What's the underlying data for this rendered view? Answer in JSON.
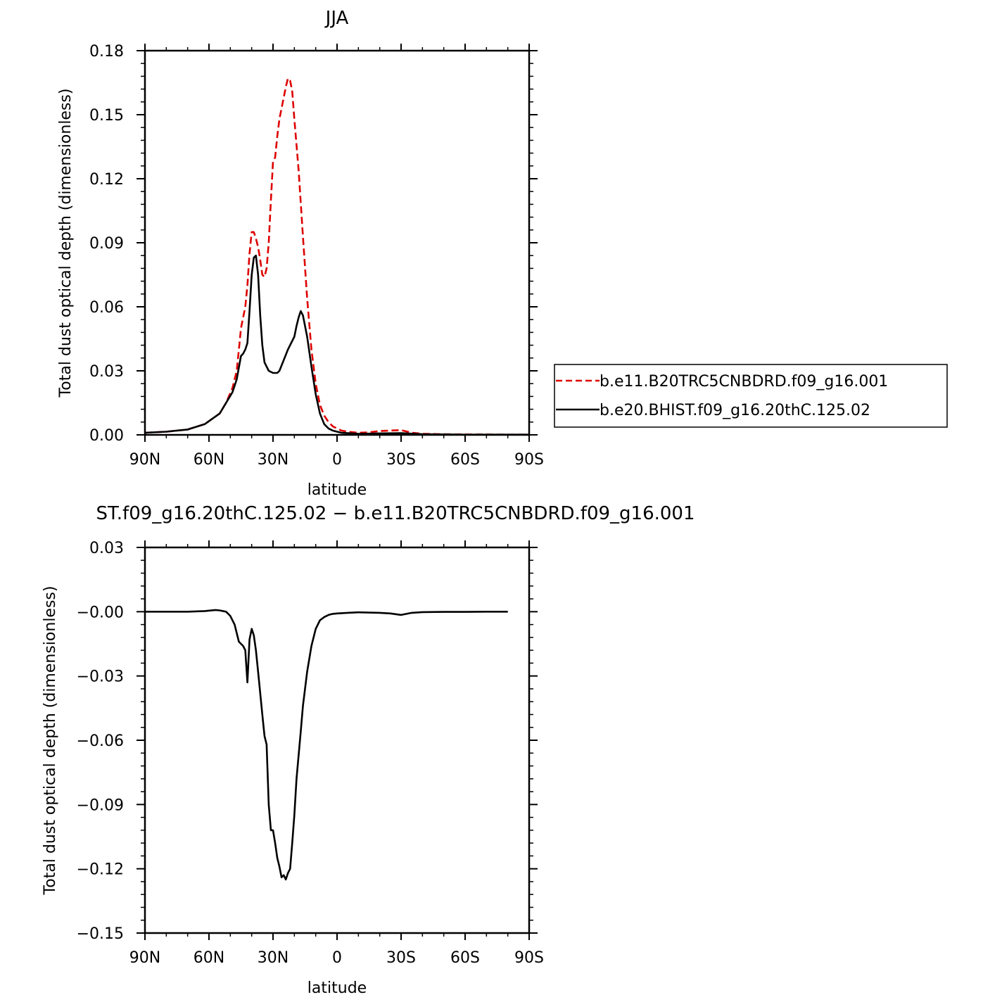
{
  "colors": {
    "background": "#ffffff",
    "axes": "#000000",
    "series_red": "#dd0000",
    "series_black": "#000000"
  },
  "chart_data": [
    {
      "type": "line",
      "title": "JJA",
      "xlabel": "latitude",
      "ylabel": "Total dust optical depth (dimensionless)",
      "xlim": [
        90,
        -90
      ],
      "ylim": [
        0,
        0.18
      ],
      "xtick_values": [
        90,
        60,
        30,
        0,
        -30,
        -60,
        -90
      ],
      "xtick_labels": [
        "90N",
        "60N",
        "30N",
        "0",
        "30S",
        "60S",
        "90S"
      ],
      "ytick_values": [
        0,
        0.03,
        0.06,
        0.09,
        0.12,
        0.15,
        0.18
      ],
      "ytick_labels": [
        "0.00",
        "0.03",
        "0.06",
        "0.09",
        "0.12",
        "0.15",
        "0.18"
      ],
      "grid": false,
      "legend_position": "outside-right",
      "series": [
        {
          "name": "b.e11.B20TRC5CNBDRD.f09_g16.001",
          "color": "#dd0000",
          "style": "dashed",
          "x": [
            90,
            80,
            70,
            62,
            55,
            52,
            49,
            47,
            46,
            45,
            43,
            42,
            41,
            40,
            39,
            38,
            37,
            36,
            35,
            34,
            33,
            32,
            31,
            30,
            29,
            28,
            27,
            25,
            24,
            23,
            22,
            21,
            20,
            18,
            16,
            14,
            12,
            10,
            8,
            6,
            4,
            2,
            0,
            -2,
            -5,
            -10,
            -15,
            -20,
            -25,
            -30,
            -35,
            -40,
            -50,
            -60,
            -70,
            -80,
            -90
          ],
          "y": [
            0.001,
            0.0015,
            0.0025,
            0.005,
            0.01,
            0.015,
            0.022,
            0.03,
            0.04,
            0.05,
            0.06,
            0.07,
            0.085,
            0.095,
            0.095,
            0.092,
            0.088,
            0.082,
            0.075,
            0.074,
            0.078,
            0.09,
            0.11,
            0.128,
            0.13,
            0.14,
            0.148,
            0.158,
            0.163,
            0.167,
            0.166,
            0.161,
            0.148,
            0.124,
            0.093,
            0.064,
            0.04,
            0.024,
            0.014,
            0.009,
            0.006,
            0.004,
            0.003,
            0.002,
            0.0015,
            0.001,
            0.0012,
            0.0018,
            0.002,
            0.0022,
            0.001,
            0.0005,
            0.0003,
            0.0002,
            0.0002,
            0.0001,
            0.0001
          ]
        },
        {
          "name": "b.e20.BHIST.f09_g16.20thC.125.02",
          "color": "#000000",
          "style": "solid",
          "x": [
            90,
            80,
            70,
            62,
            55,
            52,
            49,
            47,
            45,
            44,
            43,
            42,
            41,
            40,
            39,
            38,
            37,
            36,
            35,
            34,
            32,
            30,
            29,
            28,
            27,
            25,
            23,
            21,
            20,
            19,
            18,
            17,
            16,
            14,
            12,
            10,
            8,
            6,
            4,
            2,
            0,
            -2,
            -5,
            -10,
            -20,
            -30,
            -40,
            -50,
            -60,
            -70,
            -80,
            -90
          ],
          "y": [
            0.001,
            0.0015,
            0.0025,
            0.005,
            0.01,
            0.015,
            0.02,
            0.026,
            0.037,
            0.038,
            0.04,
            0.043,
            0.058,
            0.075,
            0.083,
            0.084,
            0.075,
            0.056,
            0.042,
            0.034,
            0.03,
            0.029,
            0.029,
            0.029,
            0.03,
            0.035,
            0.04,
            0.044,
            0.046,
            0.051,
            0.055,
            0.058,
            0.056,
            0.046,
            0.032,
            0.019,
            0.01,
            0.005,
            0.003,
            0.002,
            0.0015,
            0.001,
            0.0008,
            0.0005,
            0.0007,
            0.0008,
            0.0003,
            0.0002,
            0.0001,
            0.0001,
            0.0001,
            0.0001
          ]
        }
      ]
    },
    {
      "type": "line",
      "title": "ST.f09_g16.20thC.125.02 − b.e11.B20TRC5CNBDRD.f09_g16.001",
      "xlabel": "latitude",
      "ylabel": "Total dust optical depth (dimensionless)",
      "xlim": [
        90,
        -90
      ],
      "ylim": [
        -0.15,
        0.03
      ],
      "xtick_values": [
        90,
        60,
        30,
        0,
        -30,
        -60,
        -90
      ],
      "xtick_labels": [
        "90N",
        "60N",
        "30N",
        "0",
        "30S",
        "60S",
        "90S"
      ],
      "ytick_values": [
        0.03,
        0,
        -0.03,
        -0.06,
        -0.09,
        -0.12,
        -0.15
      ],
      "ytick_labels": [
        "0.03",
        "−0.00",
        "−0.03",
        "−0.06",
        "−0.09",
        "−0.12",
        "−0.15"
      ],
      "grid": false,
      "series": [
        {
          "color": "#000000",
          "style": "solid",
          "x": [
            90,
            80,
            70,
            62,
            57,
            55,
            52,
            50,
            48,
            46,
            45,
            44,
            43,
            42,
            41,
            40,
            39,
            38,
            37,
            36,
            35,
            34,
            33,
            32,
            31,
            30,
            29,
            28,
            27,
            26,
            25,
            24,
            23,
            22,
            21,
            20,
            19,
            18,
            17,
            16,
            14,
            12,
            10,
            8,
            6,
            4,
            2,
            0,
            -5,
            -10,
            -20,
            -25,
            -30,
            -35,
            -40,
            -50,
            -60,
            -70,
            -80
          ],
          "y": [
            0,
            0,
            0,
            0.0003,
            0.0008,
            0.0006,
            0,
            -0.002,
            -0.006,
            -0.014,
            -0.015,
            -0.016,
            -0.018,
            -0.033,
            -0.013,
            -0.008,
            -0.011,
            -0.018,
            -0.028,
            -0.038,
            -0.048,
            -0.058,
            -0.062,
            -0.09,
            -0.102,
            -0.102,
            -0.108,
            -0.115,
            -0.119,
            -0.124,
            -0.123,
            -0.125,
            -0.122,
            -0.12,
            -0.108,
            -0.095,
            -0.078,
            -0.067,
            -0.056,
            -0.044,
            -0.028,
            -0.016,
            -0.008,
            -0.004,
            -0.0025,
            -0.0015,
            -0.001,
            -0.0008,
            -0.0005,
            -0.0003,
            -0.0005,
            -0.0008,
            -0.0015,
            -0.0005,
            -0.0002,
            -0.0001,
            -0.0001,
            0,
            0
          ]
        }
      ]
    }
  ]
}
